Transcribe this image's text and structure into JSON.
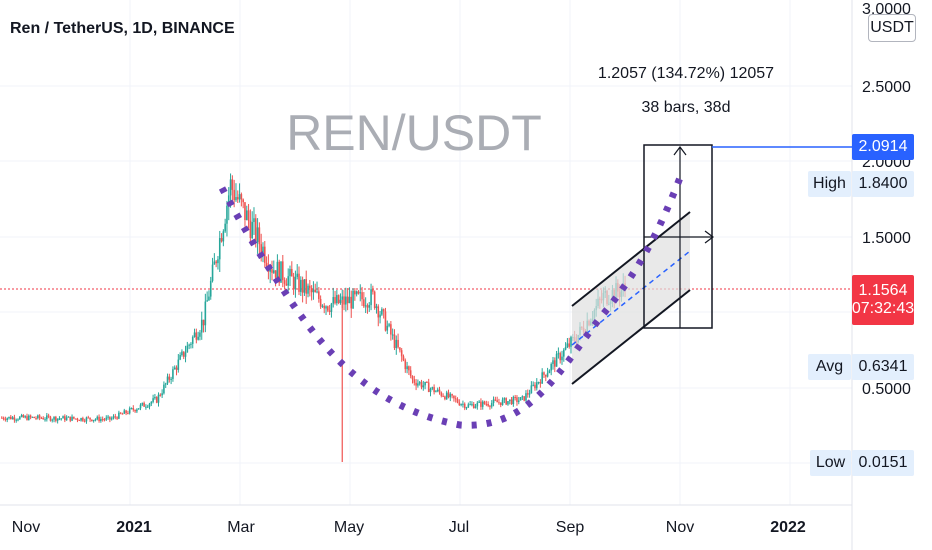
{
  "header": {
    "title": "Ren / TetherUS, 1D, BINANCE",
    "watermark": "REN/USDT"
  },
  "measure": {
    "line1": "1.2057 (134.72%) 12057",
    "line2": "38 bars, 38d"
  },
  "price_axis": {
    "unit": "USDT",
    "ticks": [
      {
        "label": "3.0000",
        "value": 3.0
      },
      {
        "label": "2.5000",
        "value": 2.5
      },
      {
        "label": "2.0000",
        "value": 2.0
      },
      {
        "label": "1.5000",
        "value": 1.5
      },
      {
        "label": "0.5000",
        "value": 0.5
      }
    ],
    "current_price": "2.0914",
    "last_price": "1.1564",
    "countdown": "07:32:43",
    "high_label": "High",
    "high_value": "1.8400",
    "avg_label": "Avg",
    "avg_value": "0.6341",
    "low_label": "Low",
    "low_value": "0.0151"
  },
  "time_axis": {
    "ticks": [
      {
        "label": "Nov",
        "bold": false
      },
      {
        "label": "2021",
        "bold": true
      },
      {
        "label": "Mar",
        "bold": false
      },
      {
        "label": "May",
        "bold": false
      },
      {
        "label": "Jul",
        "bold": false
      },
      {
        "label": "Sep",
        "bold": false
      },
      {
        "label": "Nov",
        "bold": false
      },
      {
        "label": "2022",
        "bold": true
      }
    ]
  },
  "colors": {
    "up": "#26a69a",
    "down": "#ef5350",
    "dots": "#6a3fb5",
    "price_tag": "#2962ff",
    "last_tag": "#f23645",
    "stat_bg": "#e3effd",
    "channel_fill": "#e0e0e0",
    "dashed": "#2962ff"
  },
  "chart_data": {
    "type": "candlestick",
    "symbol": "REN/USDT",
    "timeframe": "1D",
    "exchange": "BINANCE",
    "x_range": [
      "2020-10-15",
      "2022-01-31"
    ],
    "close_path": [
      {
        "date": "2020-11-01",
        "price": 0.3
      },
      {
        "date": "2020-12-15",
        "price": 0.29
      },
      {
        "date": "2021-01-10",
        "price": 0.42
      },
      {
        "date": "2021-02-05",
        "price": 0.95
      },
      {
        "date": "2021-02-20",
        "price": 1.84
      },
      {
        "date": "2021-03-15",
        "price": 1.3
      },
      {
        "date": "2021-04-15",
        "price": 1.05
      },
      {
        "date": "2021-05-10",
        "price": 1.1
      },
      {
        "date": "2021-06-01",
        "price": 0.55
      },
      {
        "date": "2021-07-01",
        "price": 0.38
      },
      {
        "date": "2021-08-01",
        "price": 0.42
      },
      {
        "date": "2021-09-01",
        "price": 0.85
      },
      {
        "date": "2021-09-15",
        "price": 1.1
      },
      {
        "date": "2021-09-27",
        "price": 1.1564
      }
    ],
    "annotations": [
      {
        "type": "measure",
        "text": "1.2057 (134.72%) 12057",
        "bars": "38 bars, 38d"
      },
      {
        "type": "target",
        "price": 2.0914
      }
    ]
  }
}
